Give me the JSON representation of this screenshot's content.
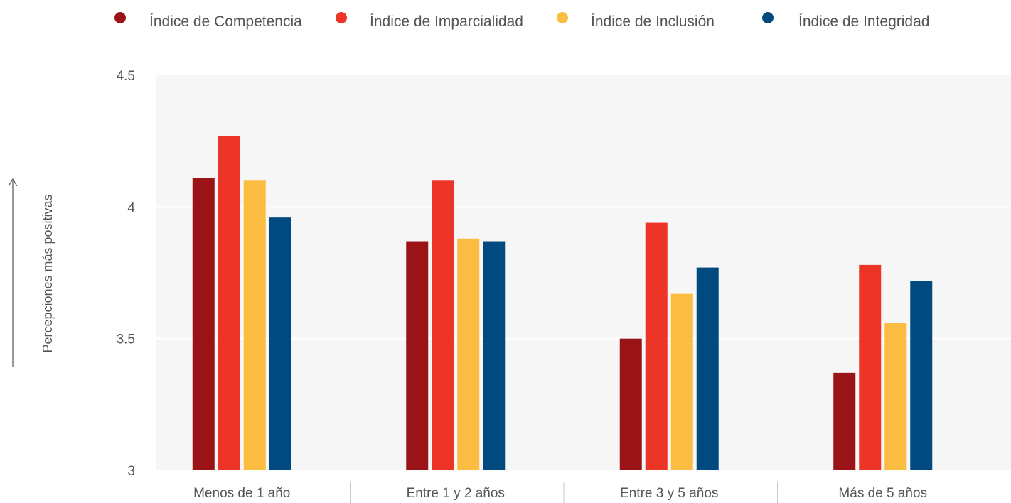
{
  "chart_data": {
    "type": "bar",
    "ylabel": "Percepciones más positivas",
    "ylim": [
      3,
      4.5
    ],
    "yticks": [
      "3",
      "3.5",
      "4",
      "4.5"
    ],
    "grid": true,
    "legend_position": "top",
    "categories": [
      "Menos de 1 año",
      "Entre 1 y 2 años",
      "Entre 3 y 5 años",
      "Más de 5 años"
    ],
    "series": [
      {
        "name": "Índice de Competencia",
        "color": "#9a1417",
        "values": [
          4.11,
          3.87,
          3.5,
          3.37
        ]
      },
      {
        "name": "Índice de Imparcialidad",
        "color": "#ec3427",
        "values": [
          4.27,
          4.1,
          3.94,
          3.78
        ]
      },
      {
        "name": "Índice de Inclusión",
        "color": "#fbbd41",
        "values": [
          4.1,
          3.88,
          3.67,
          3.56
        ]
      },
      {
        "name": "Índice de Integridad",
        "color": "#004a7f",
        "values": [
          3.96,
          3.87,
          3.77,
          3.72
        ]
      }
    ]
  }
}
